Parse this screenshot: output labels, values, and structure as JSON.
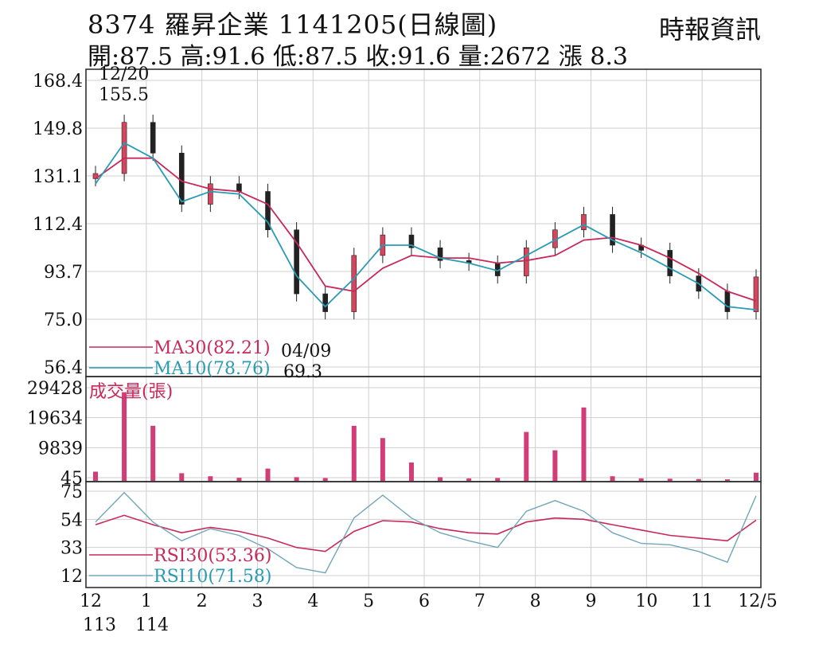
{
  "header": {
    "title": "8374  羅昇企業 1141205(日線圖)",
    "source": "時報資訊",
    "ohlc": "開:87.5 高:91.6 低:87.5 收:91.6 量:2672 漲 8.3"
  },
  "chart_data": [
    {
      "type": "candlestick",
      "panel": "price",
      "y_ticks": [
        "168.4",
        "149.8",
        "131.1",
        "112.4",
        "93.7",
        "75.0",
        "56.4"
      ],
      "ylim": [
        56.4,
        168.4
      ],
      "annotations": [
        {
          "date": "12/20",
          "value": "155.5"
        },
        {
          "date": "04/09",
          "value": "69.3"
        }
      ],
      "legend": [
        {
          "name": "MA30(82.21)",
          "color": "#c8285a"
        },
        {
          "name": "MA10(78.76)",
          "color": "#2a9bb4"
        }
      ],
      "x": [
        "2023-12",
        "2024-01",
        "2024-01",
        "2024-02",
        "2024-02",
        "2024-03",
        "2024-03",
        "2024-04",
        "2024-04",
        "2024-05",
        "2024-05",
        "2024-06",
        "2024-06",
        "2024-07",
        "2024-07",
        "2024-08",
        "2024-08",
        "2024-09",
        "2024-09",
        "2024-10",
        "2024-10",
        "2024-11",
        "2024-11",
        "2024-12"
      ],
      "close": [
        132,
        152,
        140,
        120,
        128,
        125,
        110,
        85,
        78,
        100,
        108,
        103,
        98,
        97,
        92,
        103,
        110,
        116,
        104,
        102,
        92,
        86,
        78,
        91.6
      ],
      "ma10": [
        128,
        144,
        138,
        121,
        125,
        124,
        113,
        92,
        80,
        91,
        104,
        104,
        99,
        97,
        94,
        100,
        106,
        112,
        106,
        101,
        95,
        89,
        80,
        78.76
      ],
      "ma30": [
        130,
        138,
        138,
        129,
        126,
        125,
        120,
        105,
        88,
        86,
        95,
        100,
        99,
        99,
        97,
        98,
        100,
        106,
        107,
        104,
        99,
        93,
        86,
        82.21
      ]
    },
    {
      "type": "bar",
      "panel": "volume",
      "title": "成交量(張)",
      "y_ticks": [
        "29428",
        "19634",
        "9839",
        "45"
      ],
      "ylim": [
        45,
        29428
      ],
      "values": [
        3000,
        29000,
        18000,
        2500,
        1500,
        1000,
        4000,
        1200,
        900,
        18000,
        14000,
        6000,
        1200,
        800,
        900,
        16000,
        10000,
        24000,
        1500,
        800,
        700,
        600,
        500,
        2672
      ]
    },
    {
      "type": "line",
      "panel": "rsi",
      "y_ticks": [
        "75",
        "54",
        "33",
        "12"
      ],
      "legend": [
        {
          "name": "RSI30(53.36)",
          "color": "#c8285a"
        },
        {
          "name": "RSI10(71.58)",
          "color": "#6fa7b8"
        }
      ],
      "rsi30": [
        50,
        57,
        50,
        44,
        48,
        45,
        40,
        33,
        30,
        45,
        53,
        52,
        47,
        44,
        43,
        52,
        55,
        54,
        50,
        46,
        42,
        40,
        38,
        53.36
      ],
      "rsi10": [
        52,
        74,
        52,
        38,
        47,
        42,
        32,
        18,
        14,
        55,
        72,
        55,
        44,
        38,
        33,
        60,
        68,
        60,
        44,
        36,
        35,
        30,
        22,
        71.58
      ],
      "x_ticks": [
        "12",
        "1",
        "2",
        "3",
        "4",
        "5",
        "6",
        "7",
        "8",
        "9",
        "10",
        "11",
        "12/5"
      ],
      "x_year_labels": [
        "113",
        "114"
      ]
    }
  ]
}
